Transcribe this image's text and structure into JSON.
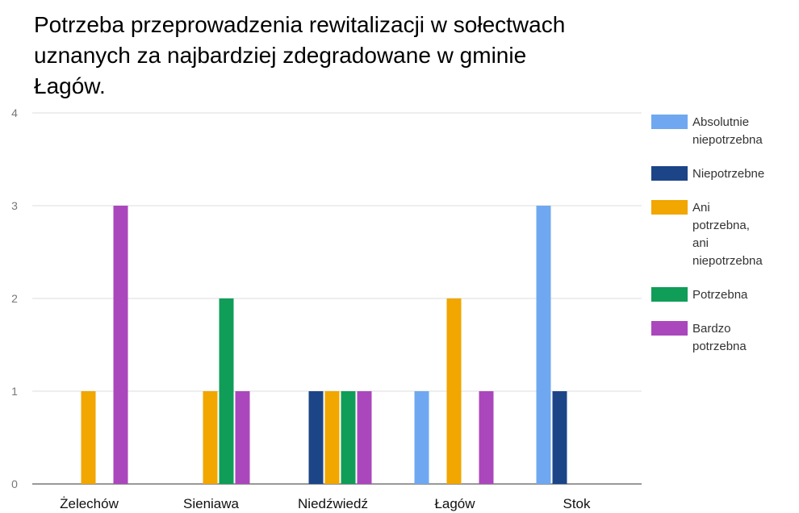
{
  "chart_data": {
    "type": "bar",
    "title": "Potrzeba przeprowadzenia rewitalizacji w sołectwach uznanych za najbardziej zdegradowane w gminie Łagów.",
    "categories": [
      "Żelechów",
      "Sieniawa",
      "Niedźwiedź",
      "Łagów",
      "Stok"
    ],
    "series": [
      {
        "name": "Absolutnie niepotrzebna",
        "color": "#6fa8f0",
        "values": [
          0,
          0,
          0,
          1,
          3
        ]
      },
      {
        "name": "Niepotrzebne",
        "color": "#1c4587",
        "values": [
          0,
          0,
          1,
          0,
          1
        ]
      },
      {
        "name": "Ani potrzebna, ani niepotrzebna",
        "color": "#f1a600",
        "values": [
          1,
          1,
          1,
          2,
          0
        ]
      },
      {
        "name": "Potrzebna",
        "color": "#0f9d58",
        "values": [
          0,
          2,
          1,
          0,
          0
        ]
      },
      {
        "name": "Bardzo potrzebna",
        "color": "#ab47bc",
        "values": [
          3,
          1,
          1,
          1,
          0
        ]
      }
    ],
    "ylim": [
      0,
      4
    ],
    "yticks": [
      0,
      1,
      2,
      3,
      4
    ],
    "grid": true,
    "legend": "right"
  }
}
